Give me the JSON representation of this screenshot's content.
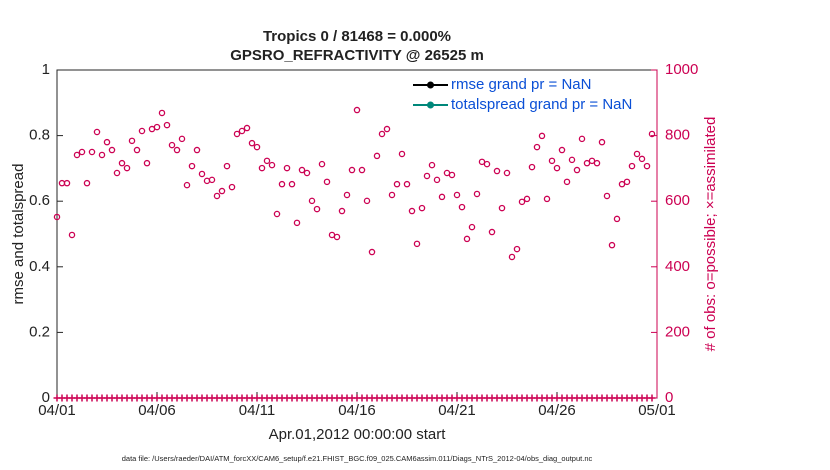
{
  "chart_data": {
    "type": "scatter",
    "title": "Tropics 0 / 81468 = 0.000%",
    "subtitle": "GPSRO_REFRACTIVITY @ 26525 m",
    "xlabel": "Apr.01,2012 00:00:00 start",
    "ylabel": "rmse and totalspread",
    "y2label": "# of obs: o=possible; ×=assimilated",
    "footnote": "data file: /Users/raeder/DAI/ATM_forcXX/CAM6_setup/f.e21.FHIST_BGC.f09_025.CAM6assim.011/Diags_NTrS_2012-04/obs_diag_output.nc",
    "legend": {
      "entries": [
        {
          "label": "rmse grand pr = NaN",
          "color": "#000000"
        },
        {
          "label": "totalspread grand pr = NaN",
          "color": "#00877a"
        }
      ],
      "position": "upper right"
    },
    "xlim": [
      0,
      30
    ],
    "xticks": [
      {
        "value": 0,
        "label": "04/01"
      },
      {
        "value": 5,
        "label": "04/06"
      },
      {
        "value": 10,
        "label": "04/11"
      },
      {
        "value": 15,
        "label": "04/16"
      },
      {
        "value": 20,
        "label": "04/21"
      },
      {
        "value": 25,
        "label": "04/26"
      },
      {
        "value": 30,
        "label": "05/01"
      }
    ],
    "ylim": [
      0,
      1
    ],
    "yticks": [
      0,
      0.2,
      0.4,
      0.6,
      0.8,
      1
    ],
    "y2lim": [
      0,
      1000
    ],
    "y2ticks": [
      0,
      200,
      400,
      600,
      800,
      1000
    ],
    "x": [
      0,
      0.25,
      0.5,
      0.75,
      1,
      1.25,
      1.5,
      1.75,
      2,
      2.25,
      2.5,
      2.75,
      3,
      3.25,
      3.5,
      3.75,
      4,
      4.25,
      4.5,
      4.75,
      5,
      5.25,
      5.5,
      5.75,
      6,
      6.25,
      6.5,
      6.75,
      7,
      7.25,
      7.5,
      7.75,
      8,
      8.25,
      8.5,
      8.75,
      9,
      9.25,
      9.5,
      9.75,
      10,
      10.25,
      10.5,
      10.75,
      11,
      11.25,
      11.5,
      11.75,
      12,
      12.25,
      12.5,
      12.75,
      13,
      13.25,
      13.5,
      13.75,
      14,
      14.25,
      14.5,
      14.75,
      15,
      15.25,
      15.5,
      15.75,
      16,
      16.25,
      16.5,
      16.75,
      17,
      17.25,
      17.5,
      17.75,
      18,
      18.25,
      18.5,
      18.75,
      19,
      19.25,
      19.5,
      19.75,
      20,
      20.25,
      20.5,
      20.75,
      21,
      21.25,
      21.5,
      21.75,
      22,
      22.25,
      22.5,
      22.75,
      23,
      23.25,
      23.5,
      23.75,
      24,
      24.25,
      24.5,
      24.75,
      25,
      25.25,
      25.5,
      25.75,
      26,
      26.25,
      26.5,
      26.75,
      27,
      27.25,
      27.5,
      27.75,
      28,
      28.25,
      28.5,
      28.75,
      29,
      29.25,
      29.5,
      29.75
    ],
    "series": [
      {
        "marker": "o",
        "color": "#cc0052",
        "axis": "y2",
        "values": [
          552,
          655,
          655,
          497,
          741,
          750,
          655,
          750,
          811,
          741,
          780,
          756,
          686,
          716,
          701,
          784,
          756,
          814,
          716,
          820,
          826,
          869,
          832,
          771,
          756,
          790,
          649,
          707,
          756,
          683,
          662,
          665,
          616,
          631,
          707,
          643,
          805,
          814,
          823,
          777,
          765,
          701,
          723,
          710,
          561,
          652,
          701,
          652,
          534,
          695,
          686,
          601,
          576,
          713,
          659,
          497,
          491,
          570,
          619,
          695,
          878,
          695,
          601,
          445,
          738,
          805,
          820,
          619,
          652,
          744,
          652,
          570,
          470,
          579,
          677,
          710,
          665,
          613,
          686,
          680,
          619,
          582,
          485,
          521,
          622,
          720,
          713,
          506,
          692,
          579,
          686,
          430,
          454,
          598,
          607,
          704,
          765,
          799,
          607,
          723,
          701,
          756,
          659,
          726,
          695,
          790,
          716,
          723,
          716,
          780,
          616,
          466,
          546,
          652,
          659,
          707,
          744,
          729,
          707,
          805
        ]
      },
      {
        "marker": "+",
        "color": "#cc0052",
        "axis": "y2",
        "values": [
          0,
          0,
          0,
          0,
          0,
          0,
          0,
          0,
          0,
          0,
          0,
          0,
          0,
          0,
          0,
          0,
          0,
          0,
          0,
          0,
          0,
          0,
          0,
          0,
          0,
          0,
          0,
          0,
          0,
          0,
          0,
          0,
          0,
          0,
          0,
          0,
          0,
          0,
          0,
          0,
          0,
          0,
          0,
          0,
          0,
          0,
          0,
          0,
          0,
          0,
          0,
          0,
          0,
          0,
          0,
          0,
          0,
          0,
          0,
          0,
          0,
          0,
          0,
          0,
          0,
          0,
          0,
          0,
          0,
          0,
          0,
          0,
          0,
          0,
          0,
          0,
          0,
          0,
          0,
          0,
          0,
          0,
          0,
          0,
          0,
          0,
          0,
          0,
          0,
          0,
          0,
          0,
          0,
          0,
          0,
          0,
          0,
          0,
          0,
          0,
          0,
          0,
          0,
          0,
          0,
          0,
          0,
          0,
          0,
          0,
          0,
          0,
          0,
          0,
          0,
          0,
          0,
          0,
          0,
          0
        ]
      }
    ]
  }
}
